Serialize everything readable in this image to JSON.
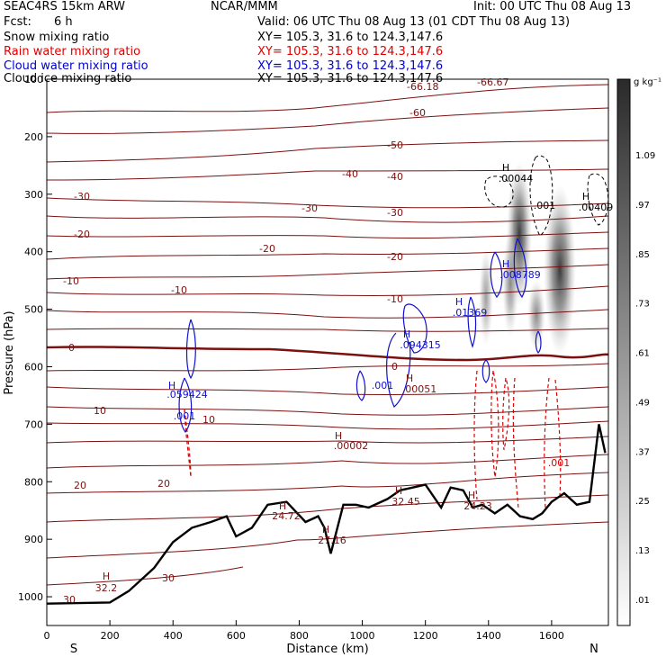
{
  "header": {
    "model": "SEAC4RS 15km ARW",
    "producer": "NCAR/MMM",
    "init": "Init: 00 UTC Thu 08 Aug 13",
    "fcst_label": "Fcst:",
    "fcst_value": "6 h",
    "valid": "Valid: 06 UTC Thu 08 Aug 13 (01 CDT Thu 08 Aug 13)",
    "rows": [
      {
        "field": "Snow mixing ratio",
        "xy": "XY= 105.3, 31.6 to 124.3,147.6",
        "color": "#000000"
      },
      {
        "field": "Rain water mixing ratio",
        "xy": "XY= 105.3, 31.6 to 124.3,147.6",
        "color": "#e00000"
      },
      {
        "field": "Cloud water mixing ratio",
        "xy": "XY= 105.3, 31.6 to 124.3,147.6",
        "color": "#0000d0"
      },
      {
        "field": "Cloud ice mixing ratio",
        "xy": "XY= 105.3, 31.6 to 124.3,147.6",
        "color": "#000000"
      }
    ]
  },
  "chart_data": {
    "type": "contour",
    "xlabel": "Distance (km)",
    "ylabel": "Pressure (hPa)",
    "xlim": [
      0,
      1780
    ],
    "ylim": [
      1050,
      100
    ],
    "x_ticks": [
      0,
      200,
      400,
      600,
      800,
      1000,
      1200,
      1400,
      1600
    ],
    "y_ticks": [
      200,
      300,
      400,
      500,
      600,
      700,
      800,
      900,
      1000
    ],
    "y_tick_labels_top": [
      "100"
    ],
    "x_end_labels": {
      "left": "S",
      "right": "N"
    },
    "colorbar": {
      "unit": "g kg⁻¹",
      "levels": [
        "1.09",
        ".97",
        ".85",
        ".73",
        ".61",
        ".49",
        ".37",
        ".25",
        ".13",
        ".01"
      ]
    },
    "temperature_contour_labels": [
      "30",
      "30",
      "20",
      "20",
      "10",
      "10",
      "0",
      "0",
      "-10",
      "-10",
      "-10",
      "-20",
      "-20",
      "-20",
      "-30",
      "-30",
      "-30",
      "-40",
      "-40",
      "-50",
      "-60",
      "-66.18",
      "-66.67"
    ],
    "extrema_labels": [
      {
        "mark": "H",
        "value": "32.2"
      },
      {
        "mark": "H",
        "value": "24.72"
      },
      {
        "mark": "H",
        "value": "27.16"
      },
      {
        "mark": "H",
        "value": "32.45"
      },
      {
        "mark": "H",
        "value": "24.23"
      },
      {
        "mark": "H",
        "value": ".00002"
      },
      {
        "mark": "H",
        "value": ".00051"
      },
      {
        "mark": "H",
        "value": ".094315"
      },
      {
        "mark": "H",
        "value": ".01369"
      },
      {
        "mark": "H",
        "value": ".008789"
      },
      {
        "mark": "H",
        "value": ".00044"
      },
      {
        "mark": "H",
        "value": ".001"
      },
      {
        "mark": "H",
        "value": ".00409"
      },
      {
        "mark": "H",
        "value": ".059424"
      }
    ],
    "small_labels": [
      ".001",
      ".001",
      ".001",
      ".001"
    ],
    "terrain": {
      "x": [
        0,
        200,
        260,
        340,
        400,
        460,
        520,
        570,
        600,
        650,
        700,
        760,
        820,
        860,
        880,
        900,
        940,
        980,
        1020,
        1080,
        1120,
        1160,
        1200,
        1250,
        1280,
        1320,
        1350,
        1380,
        1420,
        1460,
        1500,
        1540,
        1570,
        1600,
        1640,
        1680,
        1720,
        1750,
        1770
      ],
      "p": [
        1012,
        1010,
        990,
        950,
        905,
        880,
        870,
        860,
        895,
        880,
        840,
        835,
        870,
        860,
        880,
        925,
        840,
        840,
        845,
        830,
        815,
        810,
        805,
        845,
        810,
        815,
        845,
        840,
        855,
        840,
        860,
        865,
        855,
        835,
        820,
        840,
        835,
        700,
        750
      ]
    },
    "freezing_level_p": 580
  }
}
